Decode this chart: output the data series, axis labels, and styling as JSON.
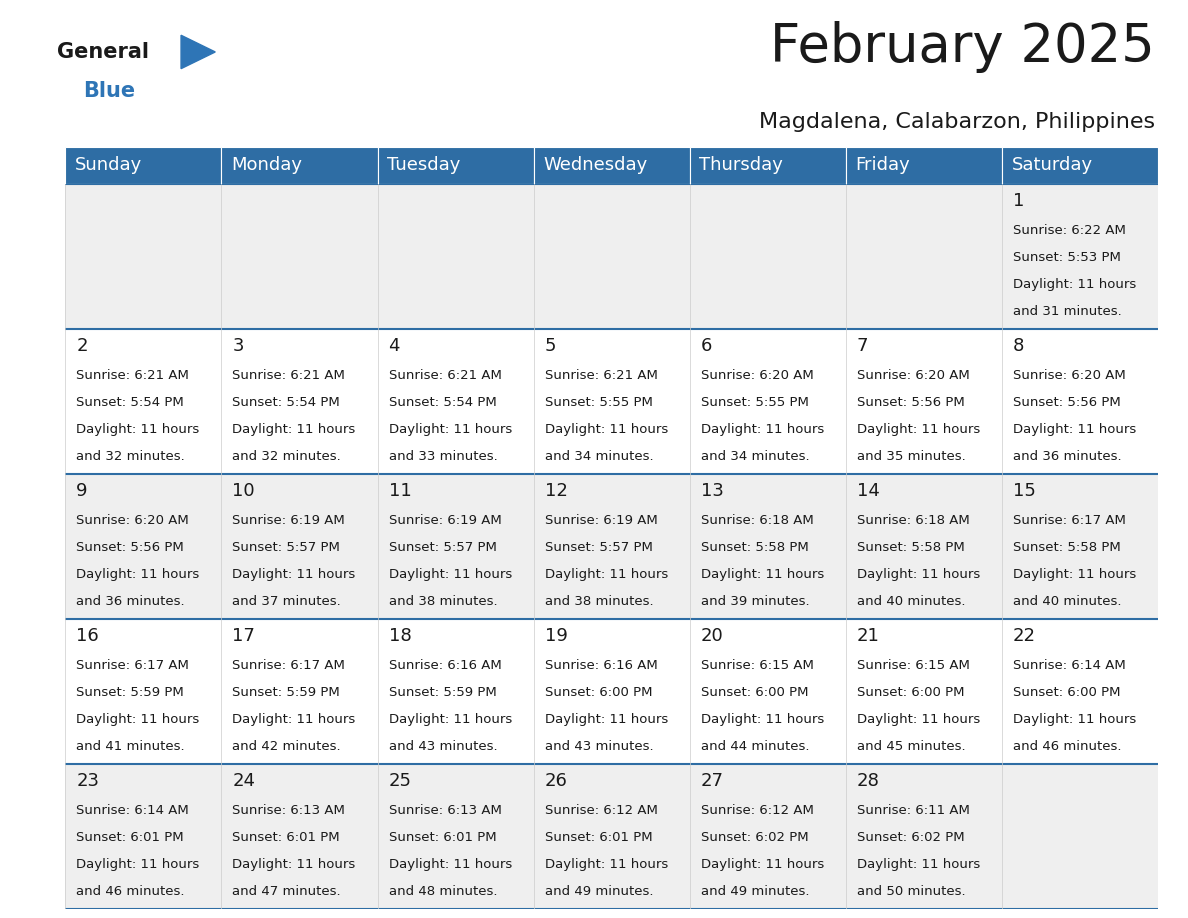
{
  "title": "February 2025",
  "subtitle": "Magdalena, Calabarzon, Philippines",
  "header_bg": "#2E6DA4",
  "header_text_color": "#FFFFFF",
  "cell_bg": "#EFEFEF",
  "cell_bg_white": "#FFFFFF",
  "border_color": "#2E6DA4",
  "day_headers": [
    "Sunday",
    "Monday",
    "Tuesday",
    "Wednesday",
    "Thursday",
    "Friday",
    "Saturday"
  ],
  "logo_color_general": "#1a1a1a",
  "logo_color_blue": "#2E75B6",
  "title_fontsize": 38,
  "subtitle_fontsize": 16,
  "header_fontsize": 13,
  "day_num_fontsize": 13,
  "info_fontsize": 9.5,
  "days": [
    {
      "day": 1,
      "col": 6,
      "row": 0,
      "sunrise": "6:22 AM",
      "sunset": "5:53 PM",
      "daylight": "11 hours and 31 minutes."
    },
    {
      "day": 2,
      "col": 0,
      "row": 1,
      "sunrise": "6:21 AM",
      "sunset": "5:54 PM",
      "daylight": "11 hours and 32 minutes."
    },
    {
      "day": 3,
      "col": 1,
      "row": 1,
      "sunrise": "6:21 AM",
      "sunset": "5:54 PM",
      "daylight": "11 hours and 32 minutes."
    },
    {
      "day": 4,
      "col": 2,
      "row": 1,
      "sunrise": "6:21 AM",
      "sunset": "5:54 PM",
      "daylight": "11 hours and 33 minutes."
    },
    {
      "day": 5,
      "col": 3,
      "row": 1,
      "sunrise": "6:21 AM",
      "sunset": "5:55 PM",
      "daylight": "11 hours and 34 minutes."
    },
    {
      "day": 6,
      "col": 4,
      "row": 1,
      "sunrise": "6:20 AM",
      "sunset": "5:55 PM",
      "daylight": "11 hours and 34 minutes."
    },
    {
      "day": 7,
      "col": 5,
      "row": 1,
      "sunrise": "6:20 AM",
      "sunset": "5:56 PM",
      "daylight": "11 hours and 35 minutes."
    },
    {
      "day": 8,
      "col": 6,
      "row": 1,
      "sunrise": "6:20 AM",
      "sunset": "5:56 PM",
      "daylight": "11 hours and 36 minutes."
    },
    {
      "day": 9,
      "col": 0,
      "row": 2,
      "sunrise": "6:20 AM",
      "sunset": "5:56 PM",
      "daylight": "11 hours and 36 minutes."
    },
    {
      "day": 10,
      "col": 1,
      "row": 2,
      "sunrise": "6:19 AM",
      "sunset": "5:57 PM",
      "daylight": "11 hours and 37 minutes."
    },
    {
      "day": 11,
      "col": 2,
      "row": 2,
      "sunrise": "6:19 AM",
      "sunset": "5:57 PM",
      "daylight": "11 hours and 38 minutes."
    },
    {
      "day": 12,
      "col": 3,
      "row": 2,
      "sunrise": "6:19 AM",
      "sunset": "5:57 PM",
      "daylight": "11 hours and 38 minutes."
    },
    {
      "day": 13,
      "col": 4,
      "row": 2,
      "sunrise": "6:18 AM",
      "sunset": "5:58 PM",
      "daylight": "11 hours and 39 minutes."
    },
    {
      "day": 14,
      "col": 5,
      "row": 2,
      "sunrise": "6:18 AM",
      "sunset": "5:58 PM",
      "daylight": "11 hours and 40 minutes."
    },
    {
      "day": 15,
      "col": 6,
      "row": 2,
      "sunrise": "6:17 AM",
      "sunset": "5:58 PM",
      "daylight": "11 hours and 40 minutes."
    },
    {
      "day": 16,
      "col": 0,
      "row": 3,
      "sunrise": "6:17 AM",
      "sunset": "5:59 PM",
      "daylight": "11 hours and 41 minutes."
    },
    {
      "day": 17,
      "col": 1,
      "row": 3,
      "sunrise": "6:17 AM",
      "sunset": "5:59 PM",
      "daylight": "11 hours and 42 minutes."
    },
    {
      "day": 18,
      "col": 2,
      "row": 3,
      "sunrise": "6:16 AM",
      "sunset": "5:59 PM",
      "daylight": "11 hours and 43 minutes."
    },
    {
      "day": 19,
      "col": 3,
      "row": 3,
      "sunrise": "6:16 AM",
      "sunset": "6:00 PM",
      "daylight": "11 hours and 43 minutes."
    },
    {
      "day": 20,
      "col": 4,
      "row": 3,
      "sunrise": "6:15 AM",
      "sunset": "6:00 PM",
      "daylight": "11 hours and 44 minutes."
    },
    {
      "day": 21,
      "col": 5,
      "row": 3,
      "sunrise": "6:15 AM",
      "sunset": "6:00 PM",
      "daylight": "11 hours and 45 minutes."
    },
    {
      "day": 22,
      "col": 6,
      "row": 3,
      "sunrise": "6:14 AM",
      "sunset": "6:00 PM",
      "daylight": "11 hours and 46 minutes."
    },
    {
      "day": 23,
      "col": 0,
      "row": 4,
      "sunrise": "6:14 AM",
      "sunset": "6:01 PM",
      "daylight": "11 hours and 46 minutes."
    },
    {
      "day": 24,
      "col": 1,
      "row": 4,
      "sunrise": "6:13 AM",
      "sunset": "6:01 PM",
      "daylight": "11 hours and 47 minutes."
    },
    {
      "day": 25,
      "col": 2,
      "row": 4,
      "sunrise": "6:13 AM",
      "sunset": "6:01 PM",
      "daylight": "11 hours and 48 minutes."
    },
    {
      "day": 26,
      "col": 3,
      "row": 4,
      "sunrise": "6:12 AM",
      "sunset": "6:01 PM",
      "daylight": "11 hours and 49 minutes."
    },
    {
      "day": 27,
      "col": 4,
      "row": 4,
      "sunrise": "6:12 AM",
      "sunset": "6:02 PM",
      "daylight": "11 hours and 49 minutes."
    },
    {
      "day": 28,
      "col": 5,
      "row": 4,
      "sunrise": "6:11 AM",
      "sunset": "6:02 PM",
      "daylight": "11 hours and 50 minutes."
    }
  ]
}
